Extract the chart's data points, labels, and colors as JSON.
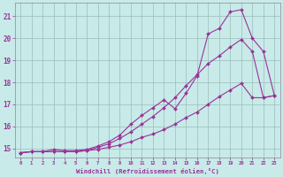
{
  "xlabel": "Windchill (Refroidissement éolien,°C)",
  "bg_color": "#c8eae8",
  "line_color": "#993399",
  "grid_color": "#99bbba",
  "xlim": [
    -0.5,
    23.5
  ],
  "ylim": [
    14.6,
    21.6
  ],
  "xticks": [
    0,
    1,
    2,
    3,
    4,
    5,
    6,
    7,
    8,
    9,
    10,
    11,
    12,
    13,
    14,
    15,
    16,
    17,
    18,
    19,
    20,
    21,
    22,
    23
  ],
  "yticks": [
    15,
    16,
    17,
    18,
    19,
    20,
    21
  ],
  "line1_x": [
    0,
    1,
    2,
    3,
    4,
    5,
    6,
    7,
    8,
    9,
    10,
    11,
    12,
    13,
    14,
    15,
    16,
    17,
    18,
    19,
    20,
    21,
    22,
    23
  ],
  "line1_y": [
    14.8,
    14.85,
    14.85,
    14.85,
    14.85,
    14.85,
    14.9,
    14.95,
    15.05,
    15.15,
    15.3,
    15.5,
    15.65,
    15.85,
    16.1,
    16.4,
    16.65,
    17.0,
    17.35,
    17.65,
    17.95,
    17.3,
    17.3,
    17.4
  ],
  "line2_x": [
    0,
    1,
    2,
    3,
    4,
    5,
    6,
    7,
    8,
    9,
    10,
    11,
    12,
    13,
    14,
    15,
    16,
    17,
    18,
    19,
    20,
    21,
    22,
    23
  ],
  "line2_y": [
    14.8,
    14.85,
    14.85,
    14.85,
    14.85,
    14.85,
    14.9,
    15.05,
    15.2,
    15.45,
    15.75,
    16.1,
    16.45,
    16.85,
    17.3,
    17.85,
    18.35,
    18.85,
    19.2,
    19.6,
    19.95,
    19.4,
    17.3,
    17.4
  ],
  "line3_x": [
    0,
    1,
    2,
    3,
    4,
    5,
    6,
    7,
    8,
    9,
    10,
    11,
    12,
    13,
    14,
    15,
    16,
    17,
    18,
    19,
    20,
    21,
    22,
    23
  ],
  "line3_y": [
    14.8,
    14.85,
    14.85,
    14.95,
    14.9,
    14.9,
    14.95,
    15.1,
    15.3,
    15.6,
    16.1,
    16.5,
    16.85,
    17.2,
    16.8,
    17.5,
    18.3,
    20.2,
    20.45,
    21.2,
    21.3,
    20.0,
    19.4,
    17.4
  ]
}
